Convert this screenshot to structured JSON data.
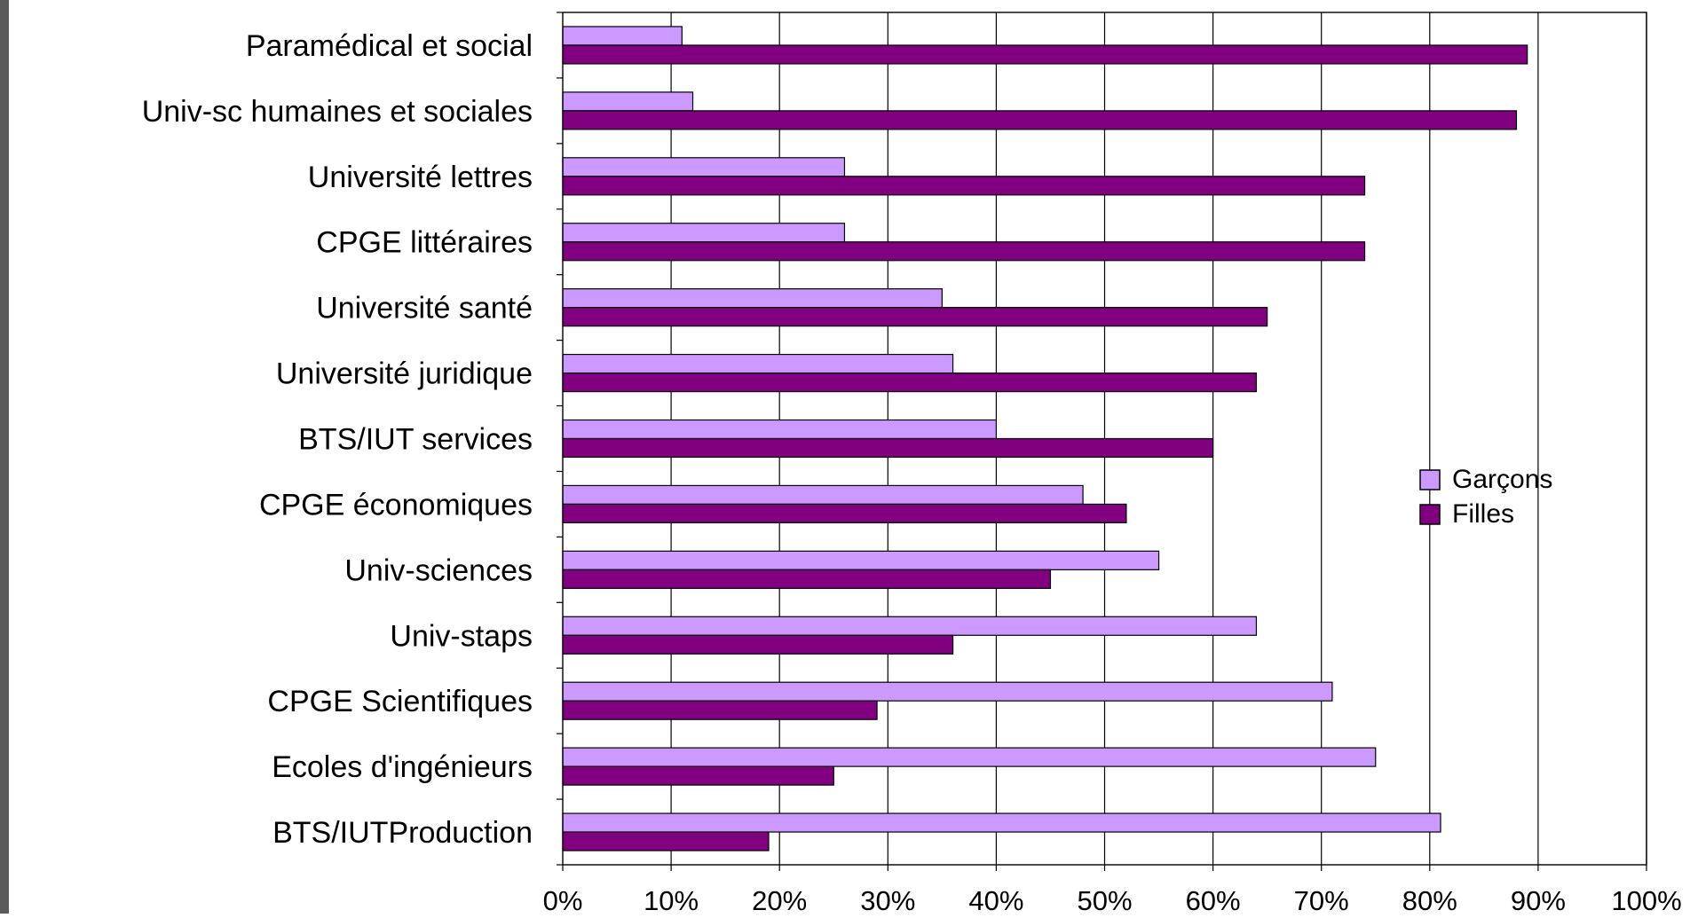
{
  "chart_data": {
    "type": "bar",
    "orientation": "horizontal",
    "categories": [
      "Paramédical et social",
      "Univ-sc humaines et sociales",
      "Université lettres",
      "CPGE littéraires",
      "Université santé",
      "Université juridique",
      "BTS/IUT services",
      "CPGE économiques",
      "Univ-sciences",
      "Univ-staps",
      "CPGE Scientifiques",
      "Ecoles d'ingénieurs",
      "BTS/IUTProduction"
    ],
    "series": [
      {
        "name": "Garçons",
        "color": "#cc99ff",
        "values": [
          11,
          12,
          26,
          26,
          35,
          36,
          40,
          48,
          55,
          64,
          71,
          75,
          81
        ]
      },
      {
        "name": "Filles",
        "color": "#800080",
        "values": [
          89,
          88,
          74,
          74,
          65,
          64,
          60,
          52,
          45,
          36,
          29,
          25,
          19
        ]
      }
    ],
    "xlim": [
      0,
      100
    ],
    "x_ticks": [
      "0%",
      "10%",
      "20%",
      "30%",
      "40%",
      "50%",
      "60%",
      "70%",
      "80%",
      "90%",
      "100%"
    ],
    "grid": "vertical",
    "legend_position": "right"
  }
}
